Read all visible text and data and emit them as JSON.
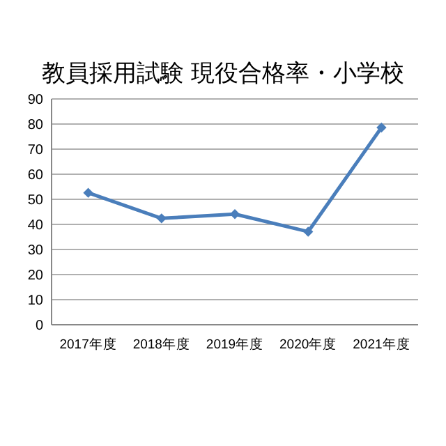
{
  "chart_data": {
    "type": "line",
    "title": "教員採用試験 現役合格率・小学校",
    "categories": [
      "2017年度",
      "2018年度",
      "2019年度",
      "2020年度",
      "2021年度"
    ],
    "series": [
      {
        "color": "#4a7ebb",
        "values": [
          52.6,
          42.4,
          44.1,
          37.1,
          78.6
        ]
      }
    ],
    "ylim": [
      0,
      90
    ],
    "yticks": [
      0,
      10,
      20,
      30,
      40,
      50,
      60,
      70,
      80,
      90
    ],
    "grid": "y",
    "marker": "diamond",
    "line_style": "solid"
  }
}
